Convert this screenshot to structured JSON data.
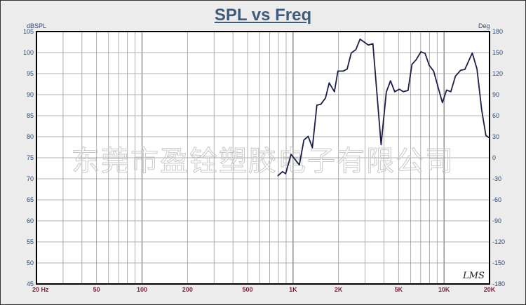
{
  "chart_data": {
    "type": "line",
    "title": "SPL vs Freq",
    "ylabel": "dBSPL",
    "y2label": "Deg",
    "xscale": "log",
    "xlim": [
      20,
      20000
    ],
    "ylim": [
      45,
      105
    ],
    "y2lim": [
      -180,
      180
    ],
    "grid": true,
    "x_tick_labels": [
      "20 Hz",
      "50",
      "100",
      "200",
      "500",
      "1K",
      "2K",
      "5K",
      "10K",
      "20K"
    ],
    "x_tick_values": [
      20,
      50,
      100,
      200,
      500,
      1000,
      2000,
      5000,
      10000,
      20000
    ],
    "y_ticks": [
      105,
      100,
      95,
      90,
      85,
      80,
      75,
      70,
      65,
      60,
      55,
      50,
      45
    ],
    "y2_ticks": [
      180,
      150,
      120,
      90,
      60,
      30,
      0,
      -30,
      -60,
      -90,
      -120,
      -150,
      -180
    ],
    "series": [
      {
        "name": "SPL",
        "color": "#1a1f4a",
        "x": [
          792,
          851,
          893,
          970,
          1100,
          1180,
          1259,
          1342,
          1437,
          1527,
          1640,
          1735,
          1878,
          1981,
          2149,
          2283,
          2427,
          2605,
          2777,
          2984,
          3148,
          3380,
          3828,
          4142,
          4418,
          4711,
          5057,
          5372,
          5770,
          6127,
          6535,
          7018,
          7485,
          7961,
          8532,
          9747,
          10395,
          11083,
          11890,
          12870,
          13730,
          15380,
          16520,
          17740,
          18920,
          20000
        ],
        "y": [
          70.7,
          71.7,
          71.2,
          75.8,
          73.3,
          79.2,
          80.1,
          77.4,
          87.5,
          87.7,
          89.2,
          92.8,
          90.7,
          95.6,
          95.6,
          96.1,
          99.9,
          100.7,
          103.2,
          102.4,
          101.8,
          102.1,
          78.1,
          90.6,
          93.3,
          90.7,
          91.3,
          90.7,
          91.0,
          97.2,
          98.3,
          100.2,
          99.8,
          97.0,
          95.6,
          88.1,
          91.1,
          90.7,
          94.4,
          95.8,
          96.0,
          99.9,
          96.1,
          86.4,
          80.3,
          79.7
        ]
      }
    ]
  },
  "watermark": "东莞市盈铨塑胶电子有限公司",
  "logo": "LMS"
}
